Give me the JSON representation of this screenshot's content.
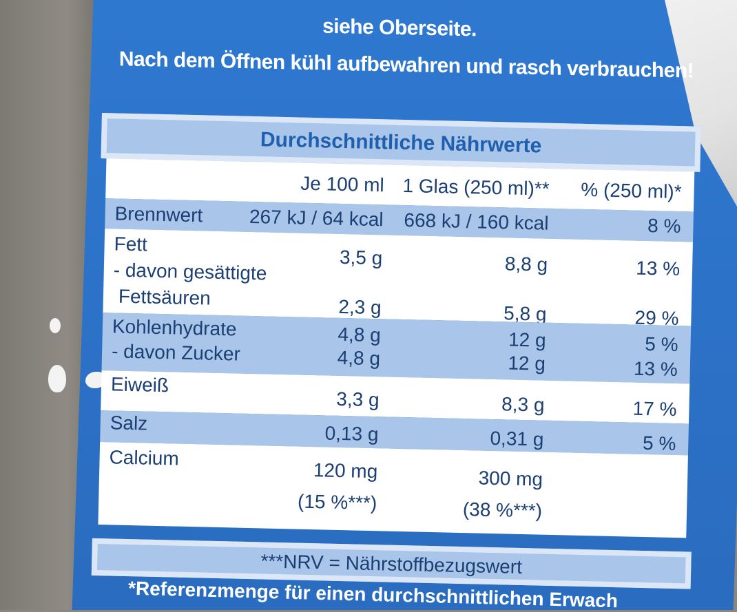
{
  "header": {
    "line1": "siehe Oberseite.",
    "line2": "Nach dem Öffnen kühl aufbewahren und rasch verbrauchen!"
  },
  "table": {
    "title": "Durchschnittliche Nährwerte",
    "columns": [
      "",
      "Je 100 ml",
      "1 Glas (250 ml)**",
      "% (250 ml)*"
    ],
    "rows": [
      {
        "label": "Brennwert",
        "je100": "267 kJ / 64 kcal",
        "glas": "668 kJ / 160 kcal",
        "pct": "8 %"
      },
      {
        "label": "Fett",
        "je100": "3,5 g",
        "glas": "8,8 g",
        "pct": "13 %"
      },
      {
        "label": "- davon gesättigte",
        "je100": "",
        "glas": "",
        "pct": ""
      },
      {
        "label": "Fettsäuren",
        "je100": "2,3 g",
        "glas": "5,8 g",
        "pct": "29 %"
      },
      {
        "label": "Kohlenhydrate",
        "je100": "4,8 g",
        "glas": "12 g",
        "pct": "5 %"
      },
      {
        "label": "- davon Zucker",
        "je100": "4,8 g",
        "glas": "12 g",
        "pct": "13 %"
      },
      {
        "label": "Eiweiß",
        "je100": "3,3 g",
        "glas": "8,3 g",
        "pct": "17 %"
      },
      {
        "label": "Salz",
        "je100": "0,13 g",
        "glas": "0,31 g",
        "pct": "5 %"
      },
      {
        "label": "Calcium",
        "je100": "120 mg",
        "glas": "300 mg",
        "pct": ""
      },
      {
        "label": "",
        "je100": "(15 %***)",
        "glas": "(38 %***)",
        "pct": ""
      }
    ],
    "footnote": "***NRV = Nährstoffbezugswert"
  },
  "bottom": {
    "text": "*Referenzmenge für einen durchschnittlichen Erwach"
  }
}
